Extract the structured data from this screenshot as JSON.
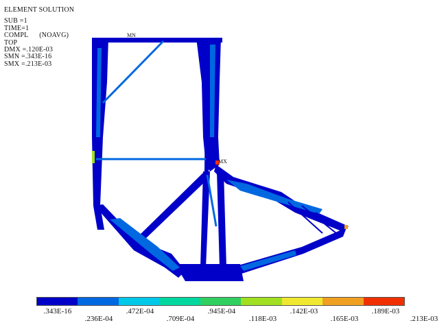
{
  "header": {
    "title": "ELEMENT SOLUTION",
    "lines": [
      "SUB =1",
      "TIME=1",
      "COMPL      (NOAVG)",
      "TOP",
      "DMX =.120E-03",
      "SMN =.343E-16",
      "SMX =.213E-03"
    ]
  },
  "markers": {
    "min": "MN",
    "max": "MX"
  },
  "legend": {
    "colors": [
      "#0000c8",
      "#0068e0",
      "#00c8e8",
      "#00d8a0",
      "#30d060",
      "#a0e020",
      "#f0e830",
      "#f0a020",
      "#f03000"
    ],
    "ticks_top": [
      ".343E-16",
      ".472E-04",
      ".945E-04",
      ".142E-03",
      ".189E-03"
    ],
    "ticks_bottom": [
      ".236E-04",
      ".709E-04",
      ".118E-03",
      ".165E-03",
      ".213E-03"
    ]
  }
}
